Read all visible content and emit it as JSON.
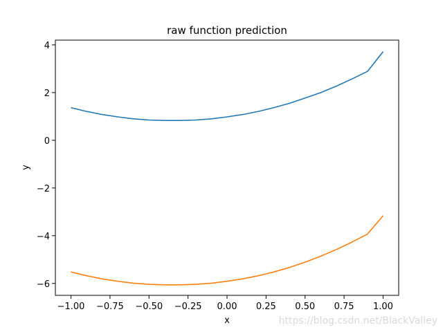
{
  "chart_data": {
    "type": "line",
    "title": "raw function prediction",
    "xlabel": "x",
    "ylabel": "y",
    "xlim": [
      -1.1,
      1.1
    ],
    "ylim": [
      -6.5,
      4.2
    ],
    "xticks": [
      -1.0,
      -0.75,
      -0.5,
      -0.25,
      0.0,
      0.25,
      0.5,
      0.75,
      1.0
    ],
    "xtick_labels": [
      "−1.00",
      "−0.75",
      "−0.50",
      "−0.25",
      "0.00",
      "0.25",
      "0.50",
      "0.75",
      "1.00"
    ],
    "yticks": [
      -6,
      -4,
      -2,
      0,
      2,
      4
    ],
    "ytick_labels": [
      "−6",
      "−4",
      "−2",
      "0",
      "2",
      "4"
    ],
    "grid": false,
    "series": [
      {
        "color": "#1f77b4",
        "x": [
          -1.0,
          -0.9,
          -0.8,
          -0.7,
          -0.6,
          -0.5,
          -0.4,
          -0.3,
          -0.2,
          -0.1,
          0.0,
          0.1,
          0.2,
          0.3,
          0.4,
          0.5,
          0.6,
          0.7,
          0.8,
          0.9,
          1.0
        ],
        "values": [
          1.37,
          1.21,
          1.08,
          0.98,
          0.9,
          0.85,
          0.83,
          0.83,
          0.85,
          0.9,
          0.98,
          1.08,
          1.21,
          1.37,
          1.55,
          1.77,
          2.0,
          2.27,
          2.57,
          2.89,
          3.72
        ]
      },
      {
        "color": "#ff7f0e",
        "x": [
          -1.0,
          -0.9,
          -0.8,
          -0.7,
          -0.6,
          -0.5,
          -0.4,
          -0.3,
          -0.2,
          -0.1,
          0.0,
          0.1,
          0.2,
          0.3,
          0.4,
          0.5,
          0.6,
          0.7,
          0.8,
          0.9,
          1.0
        ],
        "values": [
          -5.52,
          -5.68,
          -5.81,
          -5.91,
          -5.99,
          -6.04,
          -6.06,
          -6.06,
          -6.04,
          -5.99,
          -5.91,
          -5.81,
          -5.68,
          -5.52,
          -5.33,
          -5.11,
          -4.86,
          -4.58,
          -4.27,
          -3.93,
          -3.16
        ]
      }
    ]
  },
  "watermark": "https://blog.csdn.net/BlackValley"
}
